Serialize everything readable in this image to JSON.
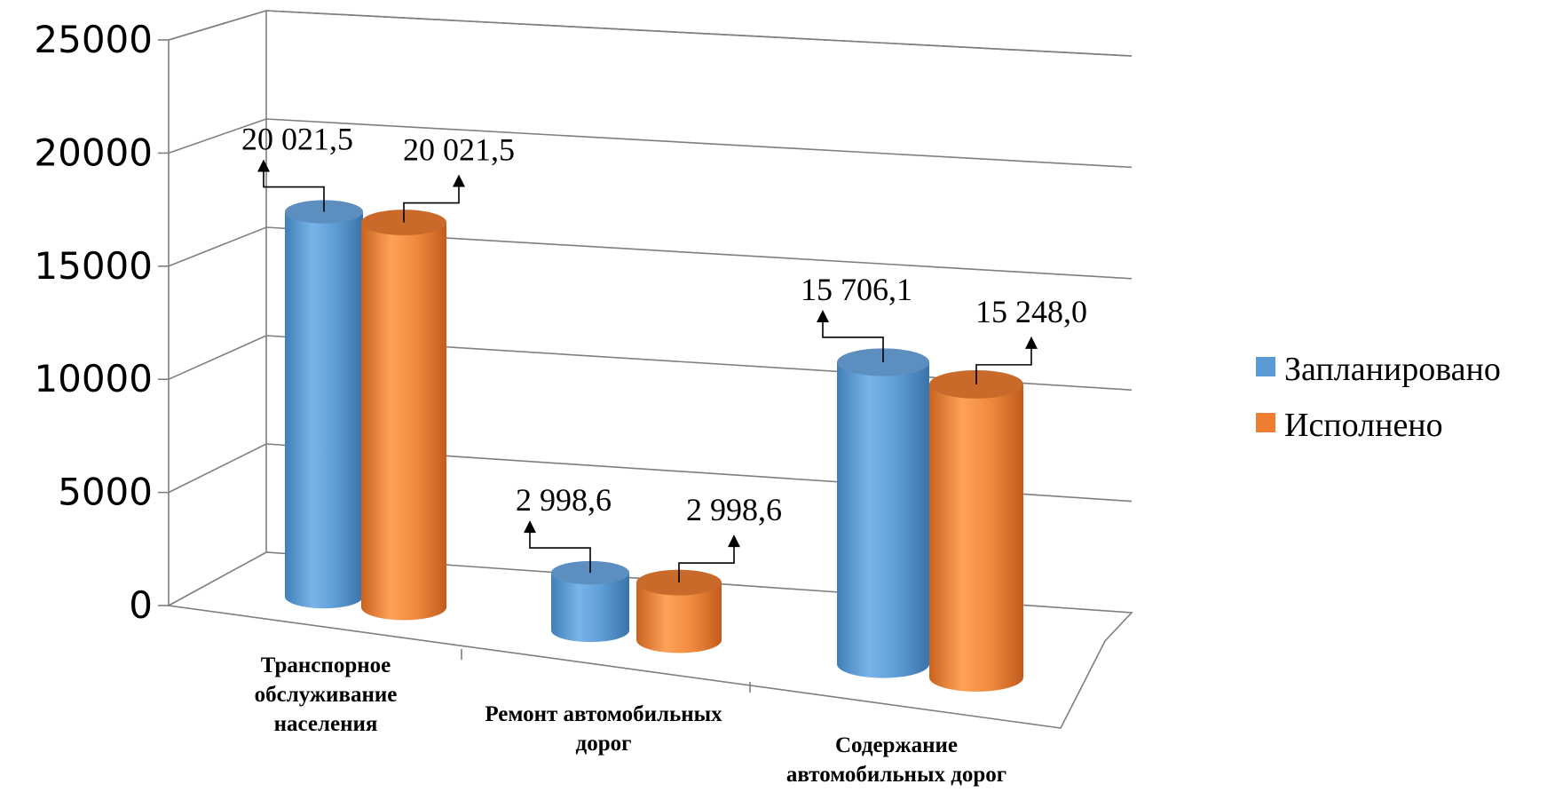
{
  "chart_data": {
    "type": "bar",
    "style": "3d-cylinder",
    "categories": [
      [
        "Транспорное",
        "обслуживание",
        "населения"
      ],
      [
        "Ремонт автомобильных",
        "дорог"
      ],
      [
        "Содержание",
        "автомобильных дорог"
      ]
    ],
    "series": [
      {
        "name": "Запланировано",
        "color": "#5b9bd5",
        "values": [
          20021.5,
          2998.6,
          15706.1
        ],
        "labels": [
          "20 021,5",
          "2 998,6",
          "15 706,1"
        ]
      },
      {
        "name": "Исполнено",
        "color": "#ed7d31",
        "values": [
          20021.5,
          2998.6,
          15248.0
        ],
        "labels": [
          "20 021,5",
          "2 998,6",
          "15 248,0"
        ]
      }
    ],
    "y_ticks": [
      "0",
      "5000",
      "10000",
      "15000",
      "20000",
      "25000"
    ],
    "ylim": [
      0,
      25000
    ],
    "grid": true,
    "legend": "right"
  }
}
